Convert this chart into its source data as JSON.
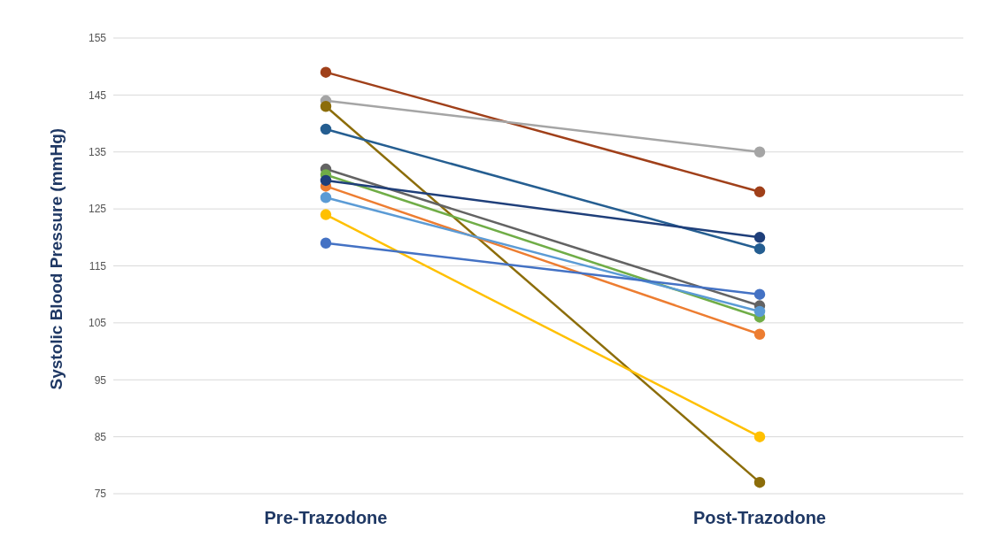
{
  "chart_data": {
    "type": "line",
    "ylabel": "Systolic Blood Pressure  (mmHg)",
    "categories": [
      "Pre-Trazodone",
      "Post-Trazodone"
    ],
    "ylim": [
      75,
      155
    ],
    "yticks": [
      75,
      85,
      95,
      105,
      115,
      125,
      135,
      145,
      155
    ],
    "grid": "y",
    "marker": "circle",
    "line_style": "solid",
    "series": [
      {
        "color": "#a0401a",
        "values": [
          149,
          128
        ]
      },
      {
        "color": "#a5a5a5",
        "values": [
          144,
          135
        ]
      },
      {
        "color": "#8c6d0a",
        "values": [
          143,
          77
        ]
      },
      {
        "color": "#255e91",
        "values": [
          139,
          118
        ]
      },
      {
        "color": "#636363",
        "values": [
          132,
          108
        ]
      },
      {
        "color": "#70ad47",
        "values": [
          131,
          106
        ]
      },
      {
        "color": "#ed7d31",
        "values": [
          129,
          103
        ]
      },
      {
        "color": "#5b9bd5",
        "values": [
          127,
          107
        ]
      },
      {
        "color": "#ffc000",
        "values": [
          124,
          85
        ]
      },
      {
        "color": "#4472c4",
        "values": [
          119,
          110
        ]
      },
      {
        "color": "#1f3f7a",
        "values": [
          130,
          120
        ]
      }
    ]
  }
}
